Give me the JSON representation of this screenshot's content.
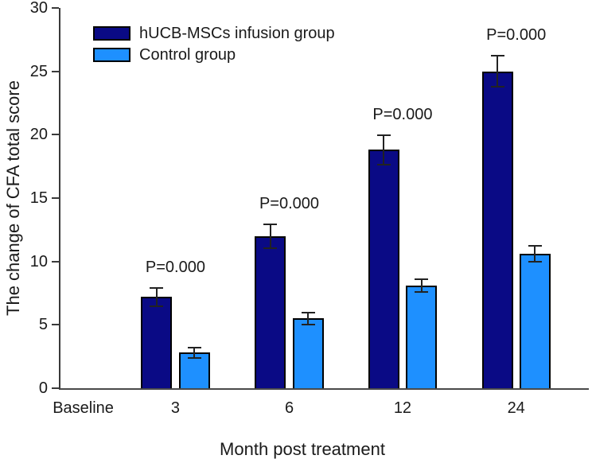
{
  "figure": {
    "background": "#ffffff",
    "axis_color": "#3a3a3a"
  },
  "chart_data": {
    "type": "bar",
    "title": "",
    "xlabel": "Month post treatment",
    "ylabel": "The change of CFA total score",
    "categories": [
      "Baseline",
      "3",
      "6",
      "12",
      "24"
    ],
    "ylim": [
      0,
      30
    ],
    "yticks": [
      0,
      5,
      10,
      15,
      20,
      25,
      30
    ],
    "grid": false,
    "legend_position": "top-left-inside",
    "series": [
      {
        "name": "hUCB-MSCs infusion group",
        "color": "#0a0a85",
        "values": [
          null,
          7.2,
          12.0,
          18.8,
          25.0
        ],
        "errors": [
          null,
          0.8,
          1.0,
          1.2,
          1.3
        ]
      },
      {
        "name": "Control group",
        "color": "#1e90ff",
        "values": [
          null,
          2.8,
          5.5,
          8.1,
          10.6
        ],
        "errors": [
          null,
          0.45,
          0.55,
          0.55,
          0.7
        ]
      }
    ],
    "annotations": [
      {
        "category": "3",
        "text": "P=0.000"
      },
      {
        "category": "6",
        "text": "P=0.000"
      },
      {
        "category": "12",
        "text": "P=0.000"
      },
      {
        "category": "24",
        "text": "P=0.000"
      }
    ]
  }
}
